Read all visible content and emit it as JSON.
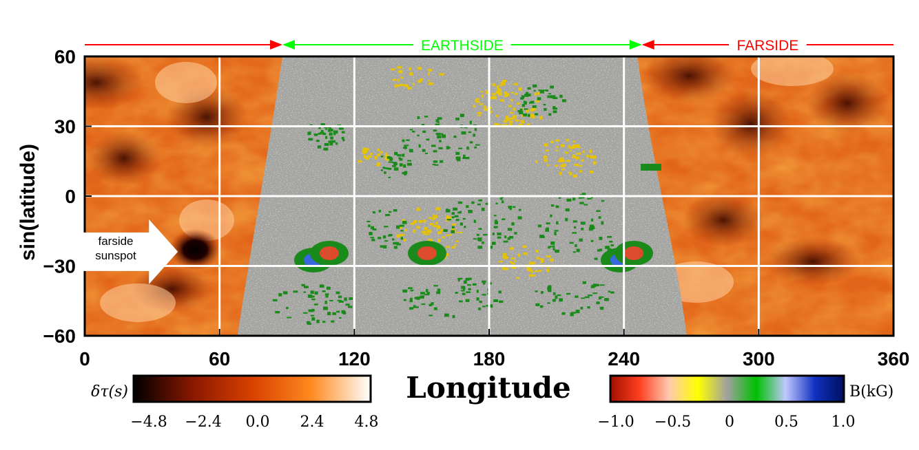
{
  "chart_data": {
    "type": "heatmap",
    "xlabel": "Longitude",
    "ylabel": "sin(latitude)",
    "x_ticks": [
      "0",
      "60",
      "120",
      "180",
      "240",
      "300",
      "360"
    ],
    "y_ticks": [
      "60",
      "30",
      "0",
      "−30",
      "−60"
    ],
    "x_range": [
      0,
      360
    ],
    "y_range": [
      -60,
      60
    ],
    "grid": true,
    "regions": [
      {
        "label": "FARSIDE",
        "lon_start": 0,
        "lon_end": 88,
        "color": "#ff0000",
        "labeled": false
      },
      {
        "label": "EARTHSIDE",
        "lon_start": 88,
        "lon_end": 248,
        "color": "#00ff00",
        "labeled": true
      },
      {
        "label": "FARSIDE",
        "lon_start": 248,
        "lon_end": 360,
        "color": "#ff0000",
        "labeled": true
      }
    ],
    "annotation": {
      "text_line1": "farside",
      "text_line2": "sunspot",
      "lon": 43,
      "lat": -23
    },
    "earthside_disk": {
      "lon_left_top": 88,
      "lon_left_bottom": 68,
      "lon_right_top": 246,
      "lon_right_bottom": 268
    },
    "colorbars": [
      {
        "label": "δτ(s)",
        "range": [
          -4.8,
          4.8
        ],
        "ticks": [
          "−4.8",
          "−2.4",
          "0.0",
          "2.4",
          "4.8"
        ],
        "colors": [
          "#000000",
          "#8a1800",
          "#d84000",
          "#ff8a20",
          "#ffffff"
        ]
      },
      {
        "label": "B(kG)",
        "range": [
          -1.0,
          1.0
        ],
        "ticks": [
          "−1.0",
          "−0.5",
          "0",
          "0.5",
          "1.0"
        ],
        "colors": [
          "#a01000",
          "#ff4020",
          "#ffc8b0",
          "#ffff00",
          "#a0a0a0",
          "#00c000",
          "#c0c8ff",
          "#1030c0",
          "#001060"
        ]
      }
    ]
  }
}
